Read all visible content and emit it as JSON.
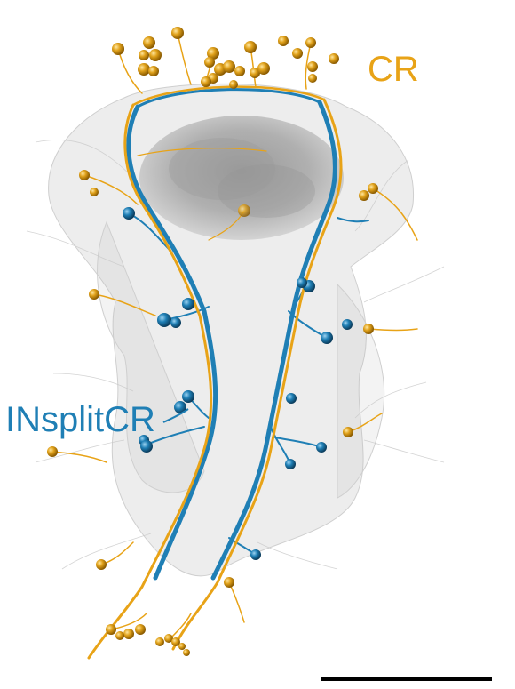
{
  "labels": {
    "cr": "CR",
    "insplitcr": "INsplitCR"
  },
  "colors": {
    "cr": "#e8a317",
    "insplitcr": "#1f7fb5",
    "tissue": "#d9d9d9",
    "background": "#ffffff",
    "scale_bar": "#000000"
  },
  "figure": {
    "description_free": true,
    "scale_bar_present": true
  }
}
